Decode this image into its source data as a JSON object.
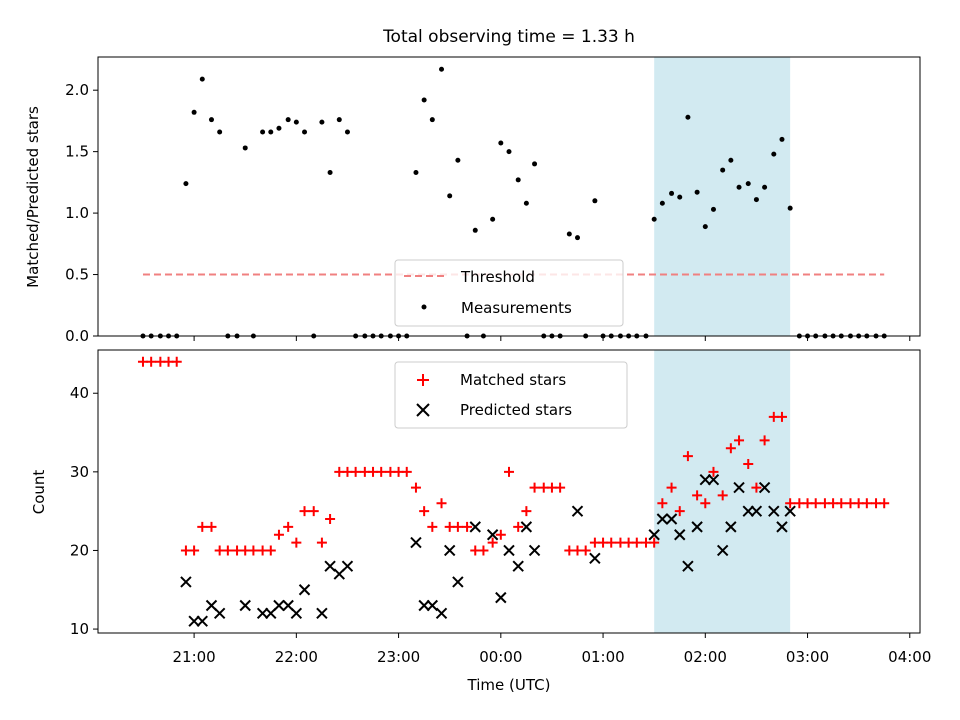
{
  "chart_data": [
    {
      "type": "scatter",
      "title": "Total observing time = 1.33 h",
      "xlabel": "",
      "ylabel": "Matched/Predicted stars",
      "x_unit": "hours (UTC, continuous past midnight; 24 = 00:00, 27 = 03:00)",
      "xlim": [
        20.06,
        28.1
      ],
      "ylim": [
        0,
        2.27
      ],
      "yticks": [
        "0.0",
        "0.5",
        "1.0",
        "1.5",
        "2.0"
      ],
      "xticks": [
        21,
        22,
        23,
        24,
        25,
        26,
        27,
        28
      ],
      "shaded_interval": [
        25.5,
        26.83
      ],
      "shade_color": "#d2eaf1",
      "threshold": {
        "name": "Threshold",
        "value": 0.5,
        "x_range": [
          20.5,
          27.75
        ],
        "color": "#f08080",
        "style": "dashed"
      },
      "legend": {
        "placement": "lower-center",
        "entries": [
          "Threshold",
          "Measurements"
        ]
      },
      "series": [
        {
          "name": "Measurements",
          "color": "#000000",
          "marker": "dot",
          "points": [
            [
              20.5,
              0
            ],
            [
              20.58,
              0
            ],
            [
              20.67,
              0
            ],
            [
              20.75,
              0
            ],
            [
              20.83,
              0
            ],
            [
              20.92,
              1.24
            ],
            [
              21.0,
              1.82
            ],
            [
              21.08,
              2.09
            ],
            [
              21.17,
              1.76
            ],
            [
              21.25,
              1.66
            ],
            [
              21.33,
              0
            ],
            [
              21.42,
              0
            ],
            [
              21.5,
              1.53
            ],
            [
              21.58,
              0
            ],
            [
              21.67,
              1.66
            ],
            [
              21.75,
              1.66
            ],
            [
              21.83,
              1.69
            ],
            [
              21.92,
              1.76
            ],
            [
              22.0,
              1.74
            ],
            [
              22.08,
              1.66
            ],
            [
              22.17,
              0
            ],
            [
              22.25,
              1.74
            ],
            [
              22.33,
              1.33
            ],
            [
              22.42,
              1.76
            ],
            [
              22.5,
              1.66
            ],
            [
              22.58,
              0
            ],
            [
              22.67,
              0
            ],
            [
              22.75,
              0
            ],
            [
              22.83,
              0
            ],
            [
              22.92,
              0
            ],
            [
              23.0,
              0
            ],
            [
              23.08,
              0
            ],
            [
              23.17,
              1.33
            ],
            [
              23.25,
              1.92
            ],
            [
              23.33,
              1.76
            ],
            [
              23.42,
              2.17
            ],
            [
              23.5,
              1.14
            ],
            [
              23.58,
              1.43
            ],
            [
              23.67,
              0
            ],
            [
              23.75,
              0.86
            ],
            [
              23.83,
              0
            ],
            [
              23.92,
              0.95
            ],
            [
              24.0,
              1.57
            ],
            [
              24.08,
              1.5
            ],
            [
              24.17,
              1.27
            ],
            [
              24.25,
              1.08
            ],
            [
              24.33,
              1.4
            ],
            [
              24.42,
              0
            ],
            [
              24.5,
              0
            ],
            [
              24.58,
              0
            ],
            [
              24.67,
              0.83
            ],
            [
              24.75,
              0.8
            ],
            [
              24.83,
              0
            ],
            [
              24.92,
              1.1
            ],
            [
              25.0,
              0
            ],
            [
              25.08,
              0
            ],
            [
              25.17,
              0
            ],
            [
              25.25,
              0
            ],
            [
              25.33,
              0
            ],
            [
              25.42,
              0
            ],
            [
              25.5,
              0.95
            ],
            [
              25.58,
              1.08
            ],
            [
              25.67,
              1.16
            ],
            [
              25.75,
              1.13
            ],
            [
              25.83,
              1.78
            ],
            [
              25.92,
              1.17
            ],
            [
              26.0,
              0.89
            ],
            [
              26.08,
              1.03
            ],
            [
              26.17,
              1.35
            ],
            [
              26.25,
              1.43
            ],
            [
              26.33,
              1.21
            ],
            [
              26.42,
              1.24
            ],
            [
              26.5,
              1.11
            ],
            [
              26.58,
              1.21
            ],
            [
              26.67,
              1.48
            ],
            [
              26.75,
              1.6
            ],
            [
              26.83,
              1.04
            ],
            [
              26.92,
              0
            ],
            [
              27.0,
              0
            ],
            [
              27.08,
              0
            ],
            [
              27.17,
              0
            ],
            [
              27.25,
              0
            ],
            [
              27.33,
              0
            ],
            [
              27.42,
              0
            ],
            [
              27.5,
              0
            ],
            [
              27.58,
              0
            ],
            [
              27.67,
              0
            ],
            [
              27.75,
              0
            ]
          ]
        }
      ]
    },
    {
      "type": "scatter",
      "title": "",
      "xlabel": "Time (UTC)",
      "ylabel": "Count",
      "x_unit": "hours (UTC, continuous past midnight; 24 = 00:00, 27 = 03:00)",
      "xlim": [
        20.06,
        28.1
      ],
      "ylim": [
        9.5,
        45.5
      ],
      "yticks": [
        "10",
        "20",
        "30",
        "40"
      ],
      "xticks": [
        21,
        22,
        23,
        24,
        25,
        26,
        27,
        28
      ],
      "xtick_labels": [
        "21:00",
        "22:00",
        "23:00",
        "00:00",
        "01:00",
        "02:00",
        "03:00",
        "04:00"
      ],
      "shaded_interval": [
        25.5,
        26.83
      ],
      "shade_color": "#d2eaf1",
      "legend": {
        "placement": "top-center",
        "entries": [
          "Matched stars",
          "Predicted stars"
        ]
      },
      "series": [
        {
          "name": "Matched stars",
          "color": "#ff0000",
          "marker": "plus",
          "points": [
            [
              20.5,
              44
            ],
            [
              20.58,
              44
            ],
            [
              20.67,
              44
            ],
            [
              20.75,
              44
            ],
            [
              20.83,
              44
            ],
            [
              20.92,
              20
            ],
            [
              21.0,
              20
            ],
            [
              21.08,
              23
            ],
            [
              21.17,
              23
            ],
            [
              21.25,
              20
            ],
            [
              21.33,
              20
            ],
            [
              21.42,
              20
            ],
            [
              21.5,
              20
            ],
            [
              21.58,
              20
            ],
            [
              21.67,
              20
            ],
            [
              21.75,
              20
            ],
            [
              21.83,
              22
            ],
            [
              21.92,
              23
            ],
            [
              22.0,
              21
            ],
            [
              22.08,
              25
            ],
            [
              22.17,
              25
            ],
            [
              22.25,
              21
            ],
            [
              22.33,
              24
            ],
            [
              22.42,
              30
            ],
            [
              22.5,
              30
            ],
            [
              22.58,
              30
            ],
            [
              22.67,
              30
            ],
            [
              22.75,
              30
            ],
            [
              22.83,
              30
            ],
            [
              22.92,
              30
            ],
            [
              23.0,
              30
            ],
            [
              23.08,
              30
            ],
            [
              23.17,
              28
            ],
            [
              23.25,
              25
            ],
            [
              23.33,
              23
            ],
            [
              23.42,
              26
            ],
            [
              23.5,
              23
            ],
            [
              23.58,
              23
            ],
            [
              23.67,
              23
            ],
            [
              23.75,
              20
            ],
            [
              23.83,
              20
            ],
            [
              23.92,
              21
            ],
            [
              24.0,
              22
            ],
            [
              24.08,
              30
            ],
            [
              24.17,
              23
            ],
            [
              24.25,
              25
            ],
            [
              24.33,
              28
            ],
            [
              24.42,
              28
            ],
            [
              24.5,
              28
            ],
            [
              24.58,
              28
            ],
            [
              24.67,
              20
            ],
            [
              24.75,
              20
            ],
            [
              24.83,
              20
            ],
            [
              24.92,
              21
            ],
            [
              25.0,
              21
            ],
            [
              25.08,
              21
            ],
            [
              25.17,
              21
            ],
            [
              25.25,
              21
            ],
            [
              25.33,
              21
            ],
            [
              25.42,
              21
            ],
            [
              25.5,
              21
            ],
            [
              25.58,
              26
            ],
            [
              25.67,
              28
            ],
            [
              25.75,
              25
            ],
            [
              25.83,
              32
            ],
            [
              25.92,
              27
            ],
            [
              26.0,
              26
            ],
            [
              26.08,
              30
            ],
            [
              26.17,
              27
            ],
            [
              26.25,
              33
            ],
            [
              26.33,
              34
            ],
            [
              26.42,
              31
            ],
            [
              26.5,
              28
            ],
            [
              26.58,
              34
            ],
            [
              26.67,
              37
            ],
            [
              26.75,
              37
            ],
            [
              26.83,
              26
            ],
            [
              26.92,
              26
            ],
            [
              27.0,
              26
            ],
            [
              27.08,
              26
            ],
            [
              27.17,
              26
            ],
            [
              27.25,
              26
            ],
            [
              27.33,
              26
            ],
            [
              27.42,
              26
            ],
            [
              27.5,
              26
            ],
            [
              27.58,
              26
            ],
            [
              27.67,
              26
            ],
            [
              27.75,
              26
            ]
          ]
        },
        {
          "name": "Predicted stars",
          "color": "#000000",
          "marker": "x",
          "points": [
            [
              20.92,
              16
            ],
            [
              21.0,
              11
            ],
            [
              21.08,
              11
            ],
            [
              21.17,
              13
            ],
            [
              21.25,
              12
            ],
            [
              21.5,
              13
            ],
            [
              21.67,
              12
            ],
            [
              21.75,
              12
            ],
            [
              21.83,
              13
            ],
            [
              21.92,
              13
            ],
            [
              22.0,
              12
            ],
            [
              22.08,
              15
            ],
            [
              22.25,
              12
            ],
            [
              22.33,
              18
            ],
            [
              22.42,
              17
            ],
            [
              22.5,
              18
            ],
            [
              23.17,
              21
            ],
            [
              23.25,
              13
            ],
            [
              23.33,
              13
            ],
            [
              23.42,
              12
            ],
            [
              23.5,
              20
            ],
            [
              23.58,
              16
            ],
            [
              23.75,
              23
            ],
            [
              23.92,
              22
            ],
            [
              24.0,
              14
            ],
            [
              24.08,
              20
            ],
            [
              24.17,
              18
            ],
            [
              24.25,
              23
            ],
            [
              24.33,
              20
            ],
            [
              24.75,
              25
            ],
            [
              24.92,
              19
            ],
            [
              25.5,
              22
            ],
            [
              25.58,
              24
            ],
            [
              25.67,
              24
            ],
            [
              25.75,
              22
            ],
            [
              25.83,
              18
            ],
            [
              25.92,
              23
            ],
            [
              26.0,
              29
            ],
            [
              26.08,
              29
            ],
            [
              26.17,
              20
            ],
            [
              26.25,
              23
            ],
            [
              26.33,
              28
            ],
            [
              26.42,
              25
            ],
            [
              26.5,
              25
            ],
            [
              26.58,
              28
            ],
            [
              26.67,
              25
            ],
            [
              26.75,
              23
            ],
            [
              26.83,
              25
            ]
          ]
        }
      ]
    }
  ]
}
